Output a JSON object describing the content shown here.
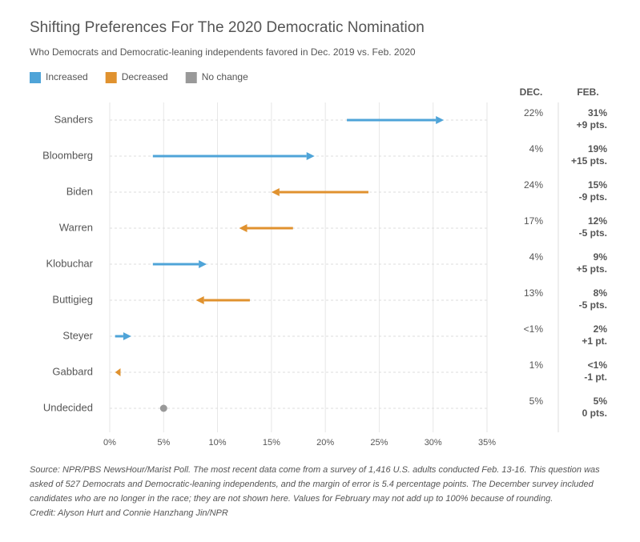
{
  "chart_data": {
    "type": "arrow",
    "title": "Shifting Preferences For The 2020 Democratic Nomination",
    "subtitle": "Who Democrats and Democratic-leaning independents favored in Dec. 2019 vs. Feb. 2020",
    "legend": [
      {
        "name": "Increased",
        "color": "#4fa4d8"
      },
      {
        "name": "Decreased",
        "color": "#e0922f"
      },
      {
        "name": "No change",
        "color": "#999999"
      }
    ],
    "categories": [
      "Sanders",
      "Bloomberg",
      "Biden",
      "Warren",
      "Klobuchar",
      "Buttigieg",
      "Steyer",
      "Gabbard",
      "Undecided"
    ],
    "series": [
      {
        "name": "DEC.",
        "values": [
          22,
          4,
          24,
          17,
          4,
          13,
          0.5,
          1,
          5
        ],
        "value_labels": [
          "22%",
          "4%",
          "24%",
          "17%",
          "4%",
          "13%",
          "<1%",
          "1%",
          "5%"
        ]
      },
      {
        "name": "FEB.",
        "values": [
          31,
          19,
          15,
          12,
          9,
          8,
          2,
          0.5,
          5
        ],
        "value_labels": [
          "31%",
          "19%",
          "15%",
          "12%",
          "9%",
          "8%",
          "2%",
          "<1%",
          "5%"
        ]
      }
    ],
    "change": {
      "values": [
        9,
        15,
        -9,
        -5,
        5,
        -5,
        1,
        -1,
        0
      ],
      "value_labels": [
        "+9 pts.",
        "+15 pts.",
        "-9 pts.",
        "-5 pts.",
        "+5 pts.",
        "-5 pts.",
        "+1 pt.",
        "-1 pt.",
        "0 pts."
      ]
    },
    "xlim": [
      0,
      35
    ],
    "xticks": [
      {
        "value": 0,
        "label": "0%"
      },
      {
        "value": 5,
        "label": "5%"
      },
      {
        "value": 10,
        "label": "10%"
      },
      {
        "value": 15,
        "label": "15%"
      },
      {
        "value": 20,
        "label": "20%"
      },
      {
        "value": 25,
        "label": "25%"
      },
      {
        "value": 30,
        "label": "30%"
      },
      {
        "value": 35,
        "label": "35%"
      }
    ],
    "grid": true,
    "source": [
      "Source: NPR/PBS NewsHour/Marist Poll. The most recent data come from a survey of 1,416 U.S. adults conducted Feb. 13-16. This question was",
      "asked of 527 Democrats and Democratic-leaning independents, and the margin of error is 5.4 percentage points. The December survey included",
      "candidates who are no longer in the race; they are not shown here. Values for February may not add up to 100% because of rounding."
    ],
    "credit": "Credit: Alyson Hurt and Connie Hanzhang Jin/NPR"
  }
}
